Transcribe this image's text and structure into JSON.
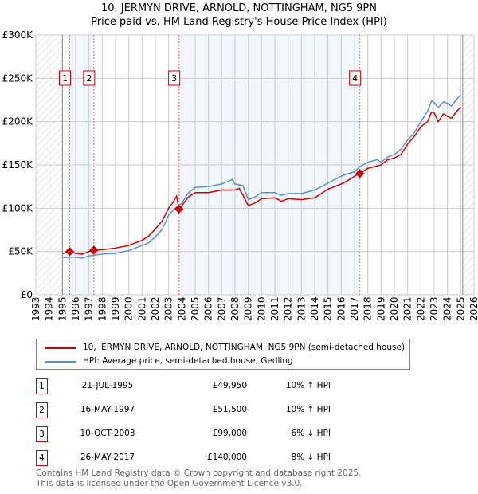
{
  "chart_data": {
    "type": "line",
    "title": "10, JERMYN DRIVE, ARNOLD, NOTTINGHAM, NG5 9PN",
    "subtitle": "Price paid vs. HM Land Registry's House Price Index (HPI)",
    "xlim": [
      1993,
      2026
    ],
    "ylim": [
      0,
      300000
    ],
    "x_ticks": [
      "1993",
      "1994",
      "1995",
      "1996",
      "1997",
      "1998",
      "1999",
      "2000",
      "2001",
      "2002",
      "2003",
      "2004",
      "2005",
      "2006",
      "2007",
      "2008",
      "2009",
      "2010",
      "2011",
      "2012",
      "2013",
      "2014",
      "2015",
      "2016",
      "2017",
      "2018",
      "2019",
      "2020",
      "2021",
      "2022",
      "2023",
      "2024",
      "2025",
      "2026"
    ],
    "y_ticks": [
      {
        "v": 0,
        "label": "£0"
      },
      {
        "v": 50000,
        "label": "£50K"
      },
      {
        "v": 100000,
        "label": "£100K"
      },
      {
        "v": 150000,
        "label": "£150K"
      },
      {
        "v": 200000,
        "label": "£200K"
      },
      {
        "v": 250000,
        "label": "£250K"
      },
      {
        "v": 300000,
        "label": "£300K"
      }
    ],
    "grid": true,
    "hatched_ranges": [
      [
        1993,
        1995
      ],
      [
        2025.15,
        2026
      ]
    ],
    "shaded_ranges": [
      [
        1995.55,
        1997.37
      ],
      [
        2003.78,
        2017.4
      ]
    ],
    "series": [
      {
        "name": "10, JERMYN DRIVE, ARNOLD, NOTTINGHAM, NG5 9PN (semi-detached house)",
        "color": "#cc0000",
        "x": [
          1995,
          1995.55,
          1996,
          1996.5,
          1997,
          1997.37,
          1998,
          1999,
          2000,
          2001,
          2001.5,
          2002,
          2002.5,
          2003,
          2003.3,
          2003.6,
          2003.78,
          2004,
          2004.5,
          2005,
          2006,
          2007,
          2008,
          2008.3,
          2008.6,
          2009,
          2009.5,
          2010,
          2011,
          2011.5,
          2012,
          2013,
          2014,
          2014.5,
          2015,
          2016,
          2016.5,
          2017,
          2017.4,
          2018,
          2019,
          2019.5,
          2020,
          2020.5,
          2021,
          2021.5,
          2022,
          2022.5,
          2022.8,
          2023,
          2023.3,
          2023.7,
          2024,
          2024.3,
          2024.7,
          2025
        ],
        "y": [
          47500,
          49950,
          48000,
          47000,
          50000,
          51500,
          52000,
          54000,
          57000,
          63000,
          68000,
          76000,
          85000,
          100000,
          106000,
          114000,
          99000,
          103000,
          113000,
          118000,
          118000,
          121000,
          121000,
          123000,
          115000,
          103000,
          106000,
          111000,
          112000,
          108000,
          111000,
          110000,
          112000,
          117000,
          122000,
          128000,
          132000,
          137000,
          140000,
          146000,
          150000,
          156000,
          158000,
          162000,
          174000,
          183000,
          194000,
          200000,
          211000,
          210000,
          200000,
          209000,
          206000,
          204000,
          212000,
          217000
        ]
      },
      {
        "name": "HPI: Average price, semi-detached house, Gedling",
        "color": "#5b8fd4",
        "x": [
          1995,
          1996,
          1996.5,
          1997,
          1998,
          1999,
          2000,
          2001,
          2001.5,
          2002,
          2002.5,
          2003,
          2003.5,
          2004,
          2004.5,
          2005,
          2006,
          2007,
          2007.8,
          2008,
          2008.6,
          2009,
          2009.5,
          2010,
          2011,
          2011.5,
          2012,
          2013,
          2014,
          2014.5,
          2015,
          2016,
          2016.5,
          2017,
          2017.4,
          2018,
          2018.7,
          2019,
          2019.5,
          2020,
          2020.5,
          2021,
          2021.5,
          2022,
          2022.5,
          2022.8,
          2023,
          2023.3,
          2023.7,
          2024,
          2024.3,
          2024.7,
          2025
        ],
        "y": [
          43000,
          43500,
          42500,
          45000,
          47000,
          48000,
          51000,
          57000,
          60000,
          67000,
          75000,
          92000,
          100000,
          106000,
          118000,
          124000,
          125000,
          128000,
          133000,
          128000,
          126000,
          110000,
          113000,
          118000,
          118000,
          115000,
          117000,
          117000,
          121000,
          125000,
          129000,
          137000,
          140000,
          142000,
          148000,
          153000,
          156000,
          153000,
          159000,
          162000,
          168000,
          179000,
          187000,
          200000,
          212000,
          224000,
          222000,
          216000,
          223000,
          221000,
          218000,
          226000,
          231000
        ]
      }
    ],
    "sales": [
      {
        "n": "1",
        "x": 1995.55,
        "y": 49950,
        "date": "21-JUL-1995",
        "price": "£49,950",
        "hpi": "10% ↑ HPI"
      },
      {
        "n": "2",
        "x": 1997.37,
        "y": 51500,
        "date": "16-MAY-1997",
        "price": "£51,500",
        "hpi": "10% ↑ HPI"
      },
      {
        "n": "3",
        "x": 2003.78,
        "y": 99000,
        "date": "10-OCT-2003",
        "price": "£99,000",
        "hpi": "6% ↓ HPI"
      },
      {
        "n": "4",
        "x": 2017.4,
        "y": 140000,
        "date": "26-MAY-2017",
        "price": "£140,000",
        "hpi": "8% ↓ HPI"
      }
    ]
  },
  "legend": {
    "property": "10, JERMYN DRIVE, ARNOLD, NOTTINGHAM, NG5 9PN (semi-detached house)",
    "hpi": "HPI: Average price, semi-detached house, Gedling"
  },
  "footer": {
    "line1": "Contains HM Land Registry data © Crown copyright and database right 2025.",
    "line2": "This data is licensed under the Open Government Licence v3.0."
  }
}
